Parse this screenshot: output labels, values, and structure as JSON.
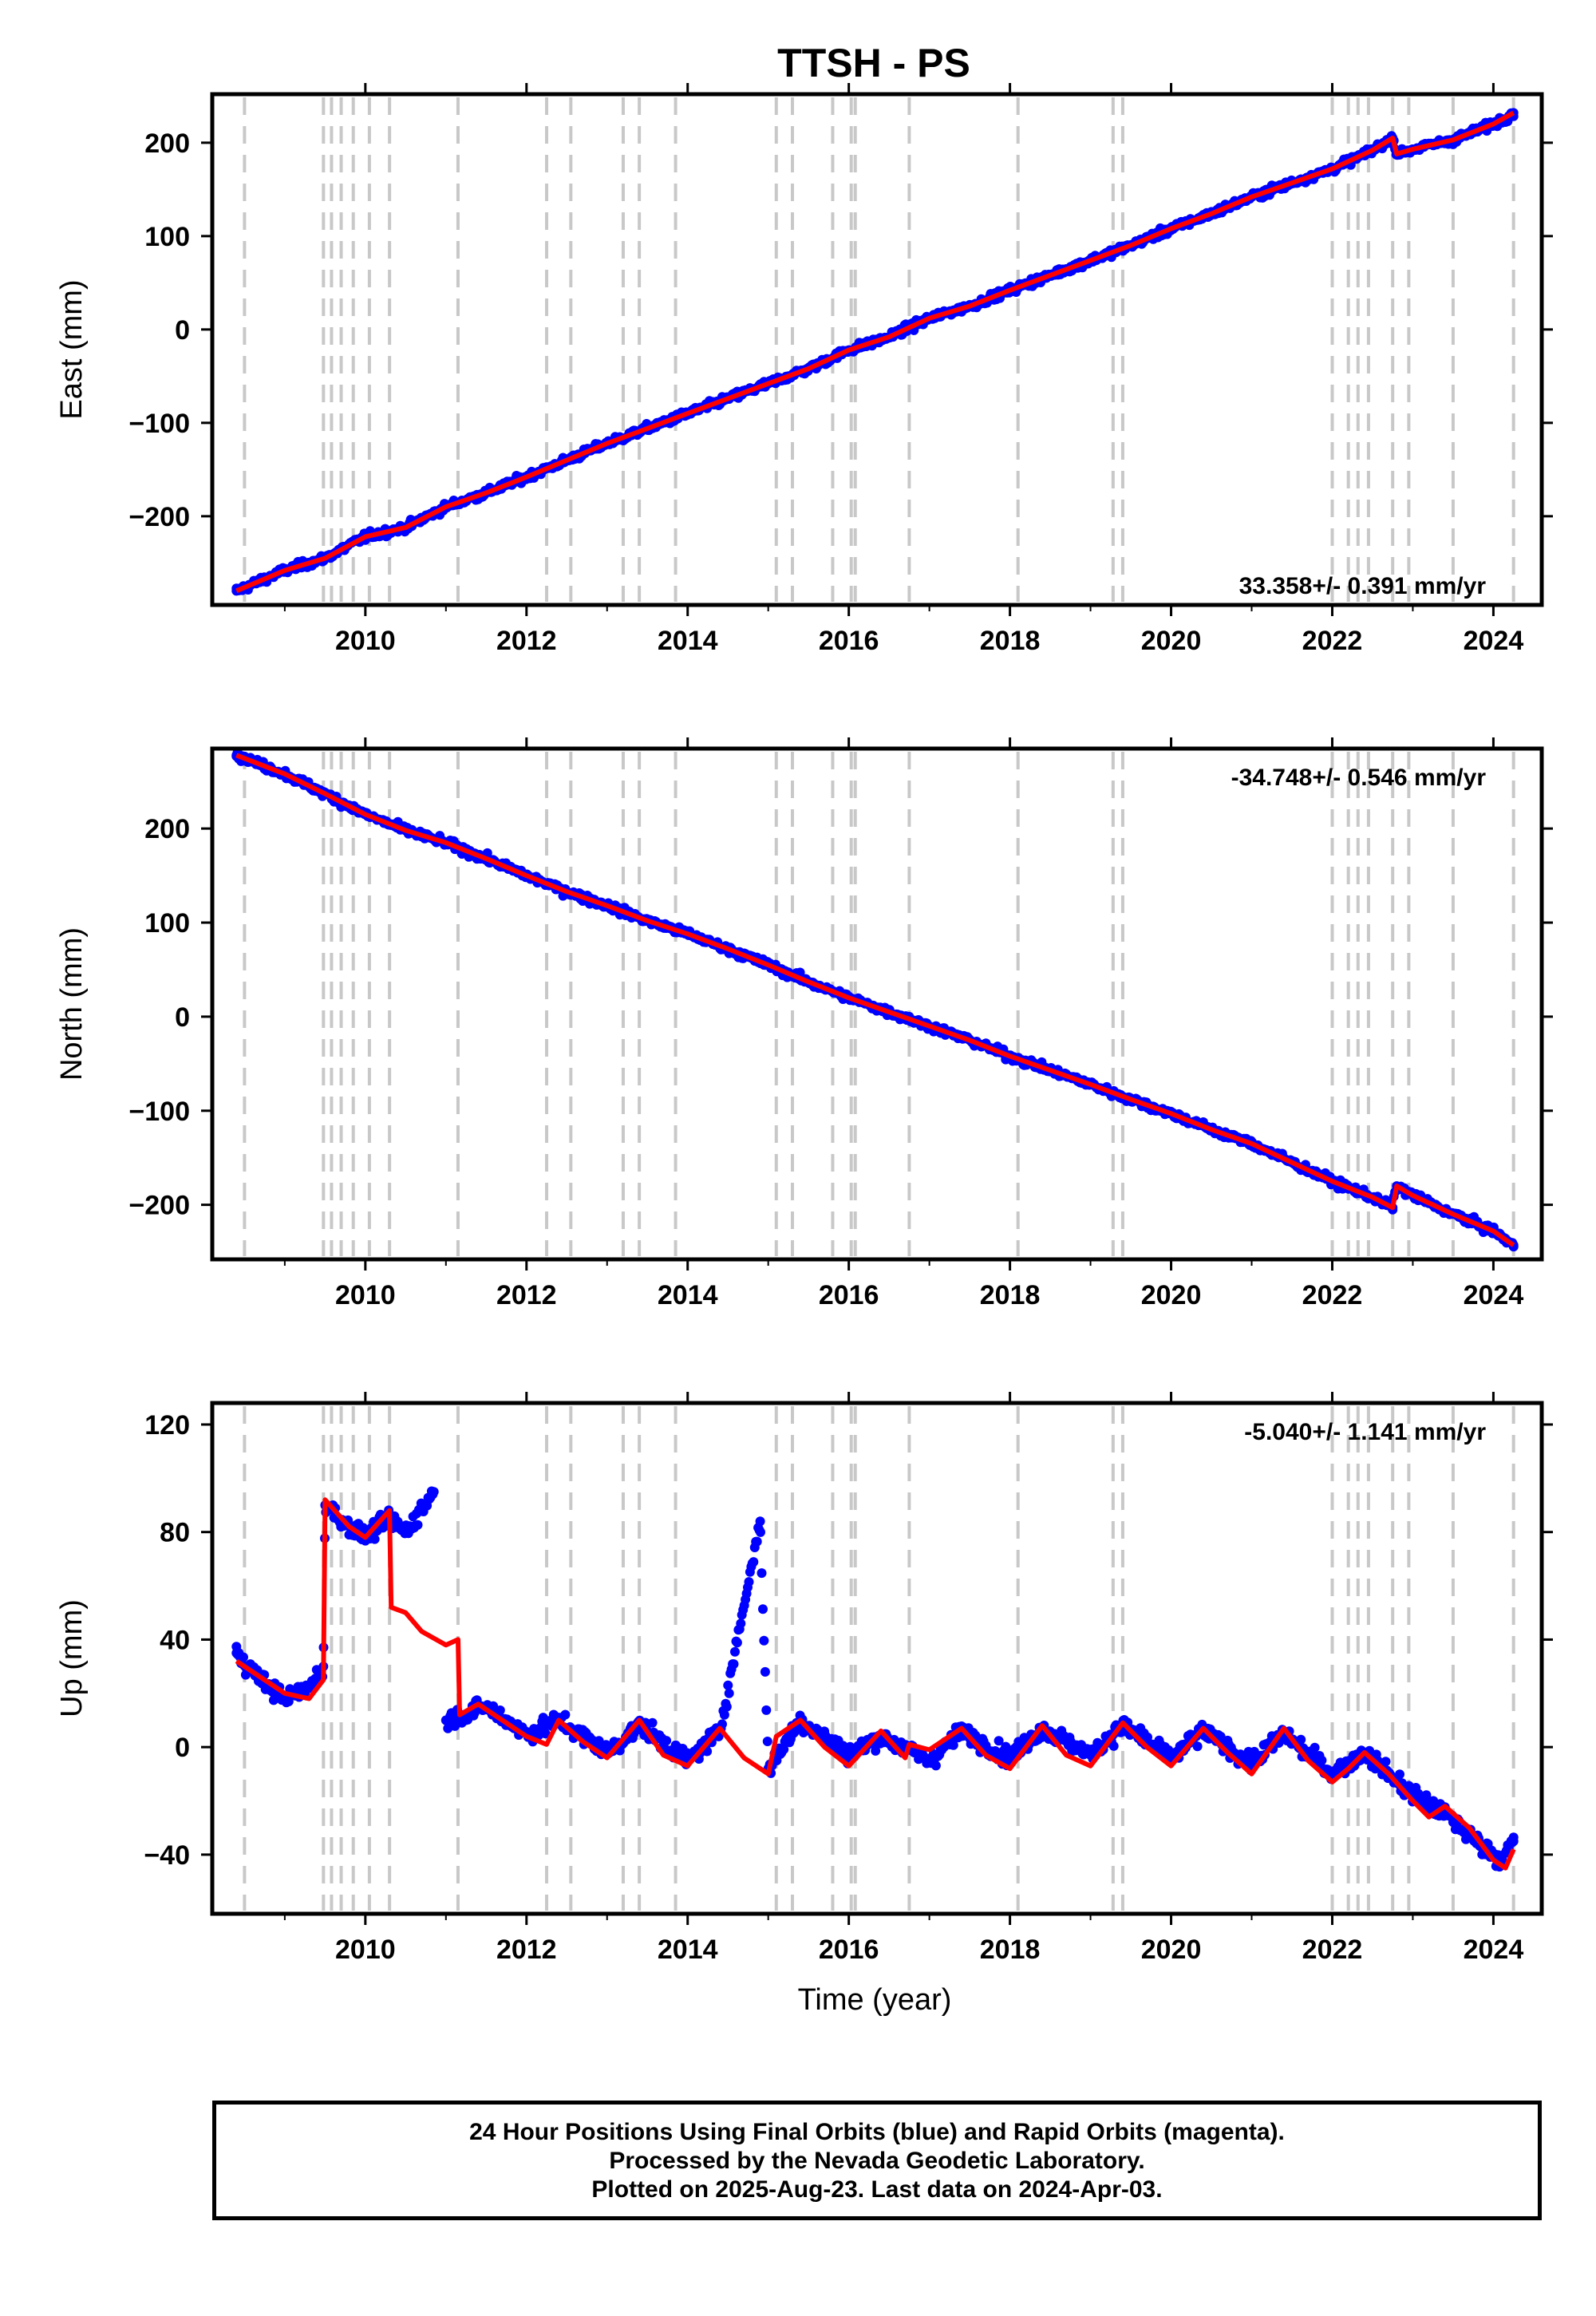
{
  "title": "TTSH - PS",
  "chart_data": [
    {
      "type": "scatter",
      "ylabel": "East (mm)",
      "xlim": [
        2008.1,
        2024.6
      ],
      "ylim": [
        -295,
        252
      ],
      "yticks": [
        -200,
        -100,
        0,
        100,
        200
      ],
      "xticks": [
        2010,
        2012,
        2014,
        2016,
        2018,
        2020,
        2022,
        2024
      ],
      "rate_label": "33.358+/- 0.391 mm/yr",
      "rate_position": "bottom-right",
      "series": [
        {
          "color": "#0000ff",
          "marker": "dot",
          "x": [
            2008.4,
            2009.0,
            2009.5,
            2010.0,
            2010.5,
            2011.0,
            2011.5,
            2012.0,
            2012.5,
            2013.0,
            2013.5,
            2014.0,
            2014.5,
            2015.0,
            2015.5,
            2016.0,
            2016.5,
            2017.0,
            2017.5,
            2018.0,
            2018.5,
            2019.0,
            2019.5,
            2020.0,
            2020.5,
            2021.0,
            2021.5,
            2022.0,
            2022.5,
            2022.75,
            2022.8,
            2023.0,
            2023.5,
            2024.0,
            2024.25
          ],
          "y": [
            -280,
            -258,
            -245,
            -222,
            -212,
            -190,
            -175,
            -158,
            -140,
            -122,
            -106,
            -90,
            -74,
            -58,
            -42,
            -22,
            -8,
            12,
            25,
            42,
            58,
            74,
            90,
            108,
            124,
            142,
            157,
            172,
            192,
            205,
            188,
            193,
            203,
            220,
            232
          ]
        },
        {
          "color": "#ff0000",
          "marker": "line",
          "x": [
            2008.4,
            2009.0,
            2009.5,
            2010.0,
            2010.5,
            2011.0,
            2011.5,
            2012.0,
            2012.5,
            2013.0,
            2013.5,
            2014.0,
            2014.5,
            2015.0,
            2015.5,
            2016.0,
            2016.5,
            2017.0,
            2017.5,
            2018.0,
            2018.5,
            2019.0,
            2019.5,
            2020.0,
            2020.5,
            2021.0,
            2021.5,
            2022.0,
            2022.5,
            2022.75,
            2022.8,
            2023.0,
            2023.5,
            2024.0,
            2024.25
          ],
          "y": [
            -280,
            -258,
            -245,
            -222,
            -212,
            -190,
            -175,
            -158,
            -140,
            -122,
            -106,
            -90,
            -74,
            -58,
            -42,
            -22,
            -8,
            12,
            25,
            42,
            58,
            74,
            90,
            108,
            124,
            142,
            157,
            172,
            192,
            205,
            188,
            193,
            203,
            220,
            232
          ]
        }
      ]
    },
    {
      "type": "scatter",
      "ylabel": "North (mm)",
      "xlim": [
        2008.1,
        2024.6
      ],
      "ylim": [
        -258,
        285
      ],
      "yticks": [
        -200,
        -100,
        0,
        100,
        200
      ],
      "xticks": [
        2010,
        2012,
        2014,
        2016,
        2018,
        2020,
        2022,
        2024
      ],
      "rate_label": "-34.748+/- 0.546 mm/yr",
      "rate_position": "top-right",
      "series": [
        {
          "color": "#0000ff",
          "marker": "dot",
          "x": [
            2008.4,
            2009.0,
            2009.5,
            2010.0,
            2010.5,
            2011.0,
            2011.5,
            2012.0,
            2012.5,
            2013.0,
            2013.5,
            2014.0,
            2014.5,
            2015.0,
            2015.5,
            2016.0,
            2016.5,
            2017.0,
            2017.5,
            2018.0,
            2018.5,
            2019.0,
            2019.5,
            2020.0,
            2020.5,
            2021.0,
            2021.5,
            2022.0,
            2022.5,
            2022.75,
            2022.8,
            2023.0,
            2023.5,
            2024.0,
            2024.25
          ],
          "y": [
            278,
            258,
            237,
            215,
            198,
            185,
            168,
            150,
            133,
            118,
            102,
            88,
            72,
            55,
            37,
            20,
            5,
            -10,
            -25,
            -42,
            -57,
            -72,
            -88,
            -103,
            -120,
            -135,
            -155,
            -175,
            -192,
            -203,
            -180,
            -190,
            -210,
            -228,
            -243
          ]
        },
        {
          "color": "#ff0000",
          "marker": "line",
          "x": [
            2008.4,
            2009.0,
            2009.5,
            2010.0,
            2010.5,
            2011.0,
            2011.5,
            2012.0,
            2012.5,
            2013.0,
            2013.5,
            2014.0,
            2014.5,
            2015.0,
            2015.5,
            2016.0,
            2016.5,
            2017.0,
            2017.5,
            2018.0,
            2018.5,
            2019.0,
            2019.5,
            2020.0,
            2020.5,
            2021.0,
            2021.5,
            2022.0,
            2022.5,
            2022.75,
            2022.8,
            2023.0,
            2023.5,
            2024.0,
            2024.25
          ],
          "y": [
            278,
            258,
            237,
            215,
            198,
            185,
            168,
            150,
            133,
            118,
            102,
            88,
            72,
            55,
            37,
            20,
            5,
            -10,
            -25,
            -42,
            -57,
            -72,
            -88,
            -103,
            -120,
            -135,
            -155,
            -175,
            -192,
            -203,
            -180,
            -190,
            -210,
            -228,
            -243
          ]
        }
      ]
    },
    {
      "type": "scatter",
      "ylabel": "Up (mm)",
      "xlabel": "Time (year)",
      "xlim": [
        2008.1,
        2024.6
      ],
      "ylim": [
        -62,
        128
      ],
      "yticks": [
        -40,
        0,
        40,
        80,
        120
      ],
      "xticks": [
        2010,
        2012,
        2014,
        2016,
        2018,
        2020,
        2022,
        2024
      ],
      "rate_label": "-5.040+/- 1.141 mm/yr",
      "rate_position": "top-right",
      "series": [
        {
          "color": "#0000ff",
          "marker": "dot",
          "x": [
            2008.4,
            2008.7,
            2009.0,
            2009.3,
            2009.48,
            2009.5,
            2009.8,
            2010.0,
            2010.3,
            2010.5,
            2010.85,
            2011.0,
            2011.2,
            2011.5,
            2012.0,
            2012.4,
            2013.0,
            2013.4,
            2014.0,
            2014.4,
            2014.9,
            2015.0,
            2015.4,
            2016.0,
            2016.4,
            2017.0,
            2017.4,
            2018.0,
            2018.4,
            2019.0,
            2019.4,
            2020.0,
            2020.4,
            2021.0,
            2021.4,
            2022.0,
            2022.4,
            2023.0,
            2023.4,
            2023.8,
            2024.1,
            2024.25
          ],
          "y": [
            35,
            25,
            18,
            22,
            30,
            90,
            82,
            78,
            85,
            80,
            95,
            10,
            12,
            15,
            5,
            10,
            -2,
            8,
            -5,
            6,
            84,
            -8,
            10,
            -3,
            4,
            -5,
            6,
            -4,
            7,
            -3,
            8,
            -4,
            6,
            -6,
            5,
            -10,
            -2,
            -18,
            -25,
            -35,
            -42,
            -35
          ]
        },
        {
          "color": "#ff0000",
          "marker": "line",
          "x": [
            2008.4,
            2008.7,
            2009.0,
            2009.3,
            2009.48,
            2009.5,
            2009.8,
            2010.0,
            2010.3,
            2010.32,
            2010.5,
            2010.7,
            2011.0,
            2011.15,
            2011.17,
            2011.4,
            2011.7,
            2012.0,
            2012.25,
            2012.4,
            2012.7,
            2013.0,
            2013.4,
            2013.7,
            2014.0,
            2014.4,
            2014.7,
            2015.0,
            2015.1,
            2015.4,
            2015.7,
            2016.0,
            2016.4,
            2016.7,
            2016.75,
            2017.0,
            2017.4,
            2017.7,
            2018.0,
            2018.4,
            2018.7,
            2019.0,
            2019.4,
            2019.7,
            2020.0,
            2020.4,
            2020.7,
            2021.0,
            2021.4,
            2021.7,
            2022.0,
            2022.2,
            2022.4,
            2022.7,
            2023.0,
            2023.2,
            2023.4,
            2023.7,
            2024.0,
            2024.15,
            2024.25
          ],
          "y": [
            32,
            26,
            20,
            18,
            25,
            92,
            82,
            78,
            88,
            52,
            50,
            43,
            38,
            40,
            12,
            16,
            10,
            4,
            1,
            10,
            2,
            -4,
            10,
            -3,
            -7,
            7,
            -4,
            -10,
            4,
            10,
            0,
            -7,
            6,
            -4,
            1,
            -1,
            7,
            -3,
            -8,
            8,
            -3,
            -7,
            9,
            0,
            -7,
            7,
            -2,
            -10,
            7,
            -5,
            -13,
            -8,
            -2,
            -10,
            -20,
            -26,
            -22,
            -30,
            -42,
            -45,
            -38
          ]
        }
      ]
    }
  ],
  "footer": {
    "line1": "24 Hour Positions Using Final Orbits (blue) and Rapid Orbits (magenta).",
    "line2": "Processed by the Nevada Geodetic Laboratory.",
    "line3": "Plotted on 2025-Aug-23. Last data on 2024-Apr-03."
  },
  "event_lines": [
    2008.5,
    2009.48,
    2009.58,
    2009.7,
    2009.85,
    2010.05,
    2010.3,
    2011.15,
    2012.25,
    2012.55,
    2013.2,
    2013.4,
    2013.85,
    2015.1,
    2015.3,
    2015.8,
    2016.03,
    2016.08,
    2016.75,
    2018.1,
    2019.28,
    2019.4,
    2022.0,
    2022.2,
    2022.32,
    2022.45,
    2022.75,
    2022.95,
    2023.5,
    2024.25
  ]
}
